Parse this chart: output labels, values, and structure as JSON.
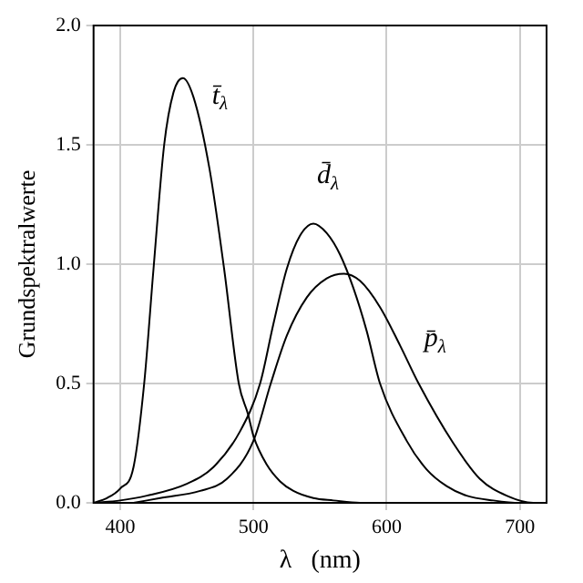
{
  "chart_data": {
    "type": "line",
    "xlabel": "λ   (nm)",
    "ylabel": "Grundspektralwerte",
    "xlim": [
      380,
      720
    ],
    "xticks": [
      400,
      500,
      600,
      700
    ],
    "ylim": [
      0,
      2.0
    ],
    "yticks": [
      {
        "value": 0,
        "label": "0.0"
      },
      {
        "value": 0.5,
        "label": "0.5"
      },
      {
        "value": 1.0,
        "label": "1.0"
      },
      {
        "value": 1.5,
        "label": "1.5"
      },
      {
        "value": 2.0,
        "label": "2.0"
      }
    ],
    "grid": true,
    "legend": false,
    "marker": "none",
    "line_style": "solid",
    "series": [
      {
        "name": "t̄$_{λ}$",
        "color": "#000000",
        "x": [
          380,
          390,
          400,
          410,
          418,
          425,
          433,
          440,
          447,
          455,
          467,
          478,
          489,
          496,
          500,
          510,
          520,
          530,
          545,
          560,
          580,
          600
        ],
        "values": [
          0.0,
          0.02,
          0.06,
          0.15,
          0.5,
          0.98,
          1.5,
          1.72,
          1.78,
          1.7,
          1.4,
          0.98,
          0.5,
          0.37,
          0.28,
          0.16,
          0.09,
          0.05,
          0.02,
          0.01,
          0.0,
          0.0
        ]
      },
      {
        "name": "d̄$_{λ}$",
        "color": "#000000",
        "x": [
          380,
          400,
          420,
          450,
          470,
          490,
          505,
          515,
          525,
          535,
          545,
          555,
          565,
          575,
          585,
          595,
          615,
          630,
          645,
          660,
          680,
          700,
          720
        ],
        "values": [
          0.0,
          0.01,
          0.03,
          0.08,
          0.15,
          0.3,
          0.5,
          0.75,
          0.98,
          1.12,
          1.17,
          1.13,
          1.04,
          0.9,
          0.72,
          0.5,
          0.26,
          0.14,
          0.07,
          0.03,
          0.01,
          0.0,
          0.0
        ]
      },
      {
        "name": "p̄$_{λ}$",
        "color": "#000000",
        "x": [
          410,
          430,
          460,
          480,
          500,
          513,
          525,
          540,
          555,
          568,
          580,
          595,
          610,
          624,
          650,
          670,
          690,
          710,
          720
        ],
        "values": [
          0.0,
          0.02,
          0.05,
          0.1,
          0.26,
          0.5,
          0.7,
          0.86,
          0.94,
          0.96,
          0.93,
          0.82,
          0.66,
          0.5,
          0.25,
          0.1,
          0.03,
          0.0,
          0.0
        ]
      }
    ]
  }
}
